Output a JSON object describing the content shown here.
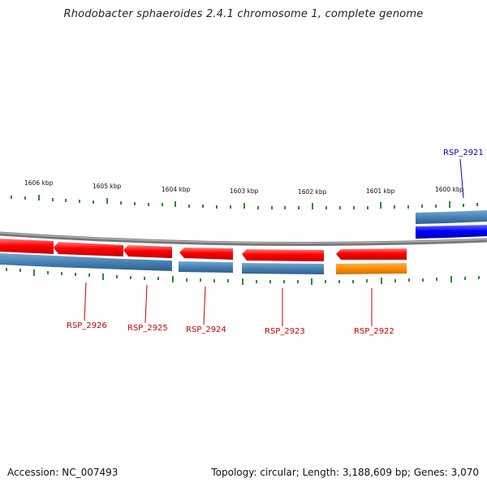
{
  "header": {
    "title": "Rhodobacter sphaeroides 2.4.1 chromosome 1, complete genome"
  },
  "footer": {
    "accession": "Accession: NC_007493",
    "summary": "Topology: circular; Length: 3,188,609 bp; Genes: 3,070"
  },
  "ruler": {
    "ticks": [
      {
        "label": "1606 kbp"
      },
      {
        "label": "1605 kbp"
      },
      {
        "label": "1604 kbp"
      },
      {
        "label": "1603 kbp"
      },
      {
        "label": "1602 kbp"
      },
      {
        "label": "1601 kbp"
      },
      {
        "label": "1600 kbp"
      }
    ],
    "tick_color": "#2e8b2e"
  },
  "genes": [
    {
      "label": "RSP_2921",
      "color": "#0000cc",
      "strand": "+"
    },
    {
      "label": "RSP_2922",
      "color": "#cc0000",
      "strand": "-"
    },
    {
      "label": "RSP_2923",
      "color": "#cc0000",
      "strand": "-"
    },
    {
      "label": "RSP_2924",
      "color": "#cc0000",
      "strand": "-"
    },
    {
      "label": "RSP_2925",
      "color": "#cc0000",
      "strand": "-"
    },
    {
      "label": "RSP_2926",
      "color": "#cc0000",
      "strand": "-"
    }
  ],
  "colors": {
    "cds_red": "#ff0000",
    "cds_blue": "#0000ff",
    "gene_steel": "#4682b4",
    "gene_orange": "#ff8c00",
    "backbone": "#888888"
  }
}
